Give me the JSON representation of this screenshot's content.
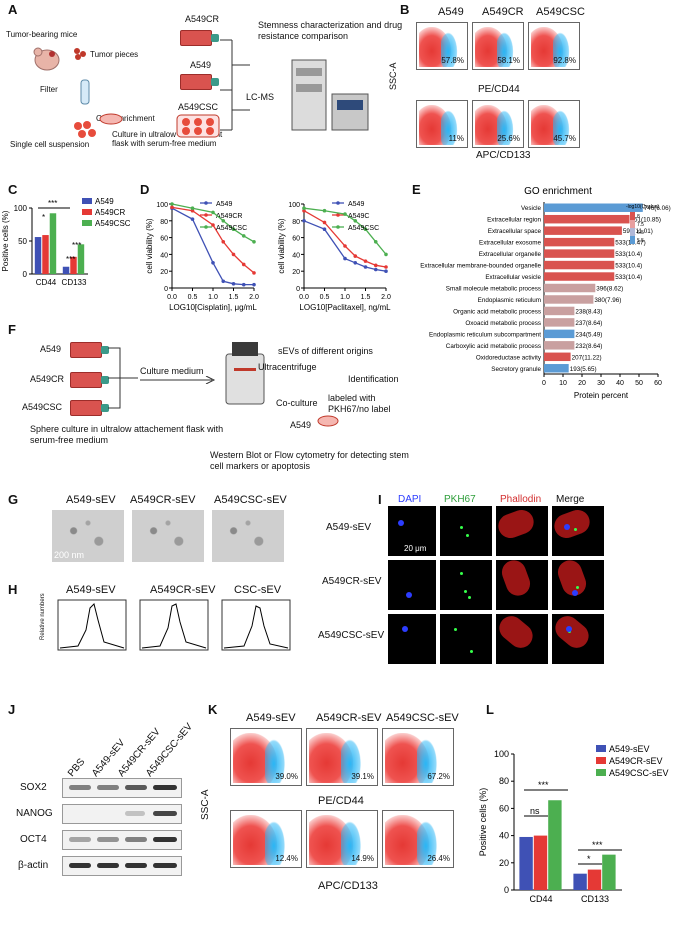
{
  "panels": {
    "A": "A",
    "B": "B",
    "C": "C",
    "D": "D",
    "E": "E",
    "F": "F",
    "G": "G",
    "H": "H",
    "I": "I",
    "J": "J",
    "K": "K",
    "L": "L"
  },
  "panelA": {
    "tumor_mice": "Tumor-bearing mice",
    "tumor_pieces": "Tumor pieces",
    "filter": "Filter",
    "csc_enrichment": "CSC enrichment",
    "single_cell": "Single cell suspension",
    "culture": "Culture in ultralow attachement flask with serum-free medium",
    "a549cr": "A549CR",
    "a549": "A549",
    "a549csc": "A549CSC",
    "stemness": "Stemness characterization and drug resistance comparison",
    "lcms": "LC-MS"
  },
  "panelB": {
    "cols": [
      "A549",
      "A549CR",
      "A549CSC"
    ],
    "top_pcts": [
      "57.8%",
      "58.1%",
      "92.8%"
    ],
    "bottom_pcts": [
      "11%",
      "25.6%",
      "45.7%"
    ],
    "ylabel": "SSC-A",
    "mid_label": "PE/CD44",
    "xlabel": "APC/CD133"
  },
  "colors": {
    "a549": "#3f51b5",
    "a549cr": "#e53935",
    "a549csc": "#4caf50"
  },
  "chart_data": [
    {
      "type": "bar",
      "id": "C",
      "title": "",
      "ylabel": "Positive cells (%)",
      "ylim": [
        0,
        100
      ],
      "yticks": [
        "0",
        "50",
        "100"
      ],
      "categories": [
        "CD44",
        "CD133"
      ],
      "series": [
        {
          "name": "A549",
          "values": [
            56,
            11
          ]
        },
        {
          "name": "A549CR",
          "values": [
            59,
            26
          ]
        },
        {
          "name": "A549CSC",
          "values": [
            92,
            45
          ]
        }
      ],
      "annotations": [
        "*",
        "***",
        "***",
        "***"
      ]
    },
    {
      "type": "line",
      "id": "D1",
      "xlabel": "LOG10[Cisplatin], μg/mL",
      "ylabel": "cell viability (%)",
      "xlim": [
        0,
        2.0
      ],
      "ylim": [
        0,
        100
      ],
      "xticks": [
        "0.0",
        "0.5",
        "1.0",
        "1.5",
        "2.0"
      ],
      "yticks": [
        "0",
        "20",
        "40",
        "60",
        "80",
        "100"
      ],
      "x": [
        0,
        0.5,
        1.0,
        1.25,
        1.5,
        1.75,
        2.0
      ],
      "series": [
        {
          "name": "A549",
          "values": [
            95,
            82,
            30,
            8,
            5,
            4,
            4
          ]
        },
        {
          "name": "A549CR",
          "values": [
            96,
            92,
            75,
            55,
            40,
            28,
            18
          ]
        },
        {
          "name": "A549CSC",
          "values": [
            100,
            95,
            90,
            80,
            70,
            62,
            55
          ]
        }
      ]
    },
    {
      "type": "line",
      "id": "D2",
      "xlabel": "LOG10[Paclitaxel], ng/mL",
      "ylabel": "cell viability (%)",
      "xlim": [
        0,
        2.0
      ],
      "ylim": [
        0,
        100
      ],
      "xticks": [
        "0.0",
        "0.5",
        "1.0",
        "1.5",
        "2.0"
      ],
      "yticks": [
        "0",
        "20",
        "40",
        "60",
        "80",
        "100"
      ],
      "x": [
        0,
        0.5,
        1.0,
        1.25,
        1.5,
        1.75,
        2.0
      ],
      "series": [
        {
          "name": "A549",
          "values": [
            80,
            70,
            35,
            30,
            25,
            22,
            20
          ]
        },
        {
          "name": "A549C",
          "values": [
            92,
            78,
            50,
            38,
            32,
            27,
            25
          ]
        },
        {
          "name": "A549CSC",
          "values": [
            95,
            92,
            88,
            80,
            70,
            55,
            40
          ]
        }
      ]
    },
    {
      "type": "bar",
      "id": "E",
      "title": "GO enrichment",
      "xlabel": "Protein percent",
      "xlim": [
        0,
        60
      ],
      "xticks": [
        "0",
        "10",
        "20",
        "30",
        "40",
        "50",
        "60"
      ],
      "legend_title": "-log10(Qvalue)",
      "legend_values": [
        "8",
        "7.5",
        "6.5",
        "5.5"
      ],
      "categories": [
        "Vesicle",
        "Extracellular region",
        "Extracellular space",
        "Extracellular exosome",
        "Extracellular organelle",
        "Extracellular membrane-bounded organelle",
        "Extracellular vesicle",
        "Small molecule metabolic process",
        "Endoplasmic reticulum",
        "Organic acid metabolic process",
        "Oxoacid metabolic process",
        "Endoplasmic reticulum subcompartment",
        "Carboxylic acid metabolic process",
        "Oxidoreductase activity",
        "Secretory granule"
      ],
      "values": [
        52,
        45,
        41,
        37,
        37,
        37,
        37,
        27,
        26,
        16,
        16,
        16,
        16,
        14,
        13
      ],
      "bar_labels": [
        "746(6.06)",
        "651(10.85)",
        "596(11.01)",
        "533(10.47)",
        "533(10.4)",
        "533(10.4)",
        "533(10.4)",
        "396(8.62)",
        "380(7.96)",
        "238(8.43)",
        "237(8.64)",
        "234(5.49)",
        "232(8.64)",
        "207(11.22)",
        "193(5.65)"
      ],
      "bar_colors": [
        "#5b9bd5",
        "#d9534f",
        "#d9534f",
        "#d9534f",
        "#d9534f",
        "#d9534f",
        "#d9534f",
        "#c9a0a0",
        "#c9a0a0",
        "#c9a0a0",
        "#c9a0a0",
        "#5b9bd5",
        "#c9a0a0",
        "#d9534f",
        "#5b9bd5"
      ]
    },
    {
      "type": "bar",
      "id": "L",
      "ylabel": "Positive cells (%)",
      "ylim": [
        0,
        100
      ],
      "yticks": [
        "0",
        "20",
        "40",
        "60",
        "80",
        "100"
      ],
      "categories": [
        "CD44",
        "CD133"
      ],
      "series": [
        {
          "name": "A549-sEV",
          "values": [
            39,
            12
          ]
        },
        {
          "name": "A549CR-sEV",
          "values": [
            40,
            15
          ]
        },
        {
          "name": "A549CSC-sEV",
          "values": [
            66,
            26
          ]
        }
      ],
      "annotations": [
        "***",
        "ns",
        "***",
        "*"
      ]
    }
  ],
  "panelF": {
    "a549": "A549",
    "a549cr": "A549CR",
    "a549csc": "A549CSC",
    "culture_medium": "Culture medium",
    "sevs": "sEVs of different origins",
    "ultracentrifuge": "Ultracentrifuge",
    "identification": "Identification",
    "labeled": "labeled with PKH67/no label",
    "coculture": "Co-culture",
    "sphere": "Sphere culture in ultralow attachement flask with serum-free medium",
    "a549_target": "A549",
    "western": "Western Blot or Flow cytometry for detecting stem cell markers or apoptosis"
  },
  "panelG": {
    "cols": [
      "A549-sEV",
      "A549CR-sEV",
      "A549CSC-sEV"
    ],
    "scale": "200 nm"
  },
  "panelH": {
    "cols": [
      "A549-sEV",
      "A549CR-sEV",
      "CSC-sEV"
    ],
    "ylabel": "Relative numbers"
  },
  "panelI": {
    "cols": [
      "DAPI",
      "PKH67",
      "Phallodin",
      "Merge"
    ],
    "rows": [
      "A549-sEV",
      "A549CR-sEV",
      "A549CSC-sEV"
    ],
    "scale": "20 μm"
  },
  "panelJ": {
    "lanes": [
      "PBS",
      "A549-sEV",
      "A549CR-sEV",
      "A549CSC-sEV"
    ],
    "rows": [
      "SOX2",
      "NANOG",
      "OCT4",
      "β-actin"
    ]
  },
  "panelK": {
    "cols": [
      "A549-sEV",
      "A549CR-sEV",
      "A549CSC-sEV"
    ],
    "top_pcts": [
      "39.0%",
      "39.1%",
      "67.2%"
    ],
    "bottom_pcts": [
      "12.4%",
      "14.9%",
      "26.4%"
    ],
    "ylabel": "SSC-A",
    "mid_label": "PE/CD44",
    "xlabel": "APC/CD133"
  }
}
